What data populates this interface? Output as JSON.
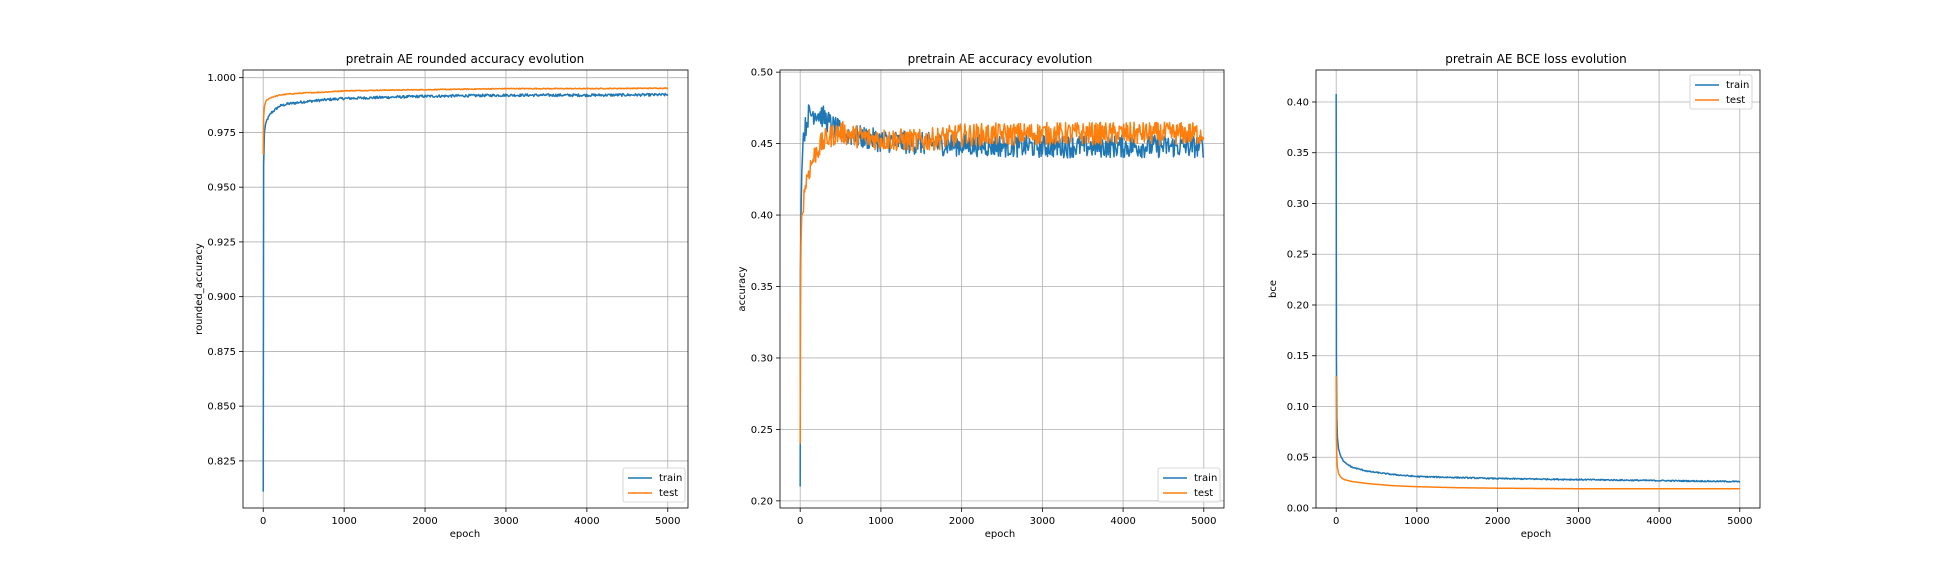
{
  "chart_data": [
    {
      "type": "line",
      "title": "pretrain AE rounded accuracy evolution",
      "xlabel": "epoch",
      "ylabel": "rounded_accuracy",
      "xlim": [
        -250,
        5250
      ],
      "ylim": [
        0.8035,
        1.0035
      ],
      "xticks": [
        0,
        1000,
        2000,
        3000,
        4000,
        5000
      ],
      "yticks": [
        0.825,
        0.85,
        0.875,
        0.9,
        0.925,
        0.95,
        0.975,
        1.0
      ],
      "ytick_labels": [
        "0.825",
        "0.850",
        "0.875",
        "0.900",
        "0.925",
        "0.950",
        "0.975",
        "1.000"
      ],
      "grid": true,
      "legend": "lower-right",
      "noise": [
        0.0006,
        0.0002
      ],
      "series": [
        {
          "name": "train",
          "color": "#1f77b4",
          "x": [
            0,
            5,
            15,
            30,
            50,
            100,
            200,
            300,
            500,
            800,
            1000,
            1500,
            2000,
            3000,
            4000,
            5000
          ],
          "y": [
            0.811,
            0.96,
            0.975,
            0.979,
            0.981,
            0.984,
            0.987,
            0.988,
            0.989,
            0.99,
            0.9905,
            0.991,
            0.9915,
            0.992,
            0.992,
            0.9922
          ]
        },
        {
          "name": "test",
          "color": "#ff7f0e",
          "x": [
            0,
            5,
            15,
            30,
            50,
            100,
            200,
            300,
            500,
            800,
            1000,
            1500,
            2000,
            3000,
            4000,
            5000
          ],
          "y": [
            0.965,
            0.982,
            0.987,
            0.989,
            0.99,
            0.991,
            0.992,
            0.9925,
            0.993,
            0.9935,
            0.994,
            0.9943,
            0.9945,
            0.995,
            0.995,
            0.9952
          ]
        }
      ]
    },
    {
      "type": "line",
      "title": "pretrain AE accuracy evolution",
      "xlabel": "epoch",
      "ylabel": "accuracy",
      "xlim": [
        -250,
        5250
      ],
      "ylim": [
        0.195,
        0.5015
      ],
      "xticks": [
        0,
        1000,
        2000,
        3000,
        4000,
        5000
      ],
      "yticks": [
        0.2,
        0.25,
        0.3,
        0.35,
        0.4,
        0.45,
        0.5
      ],
      "ytick_labels": [
        "0.20",
        "0.25",
        "0.30",
        "0.35",
        "0.40",
        "0.45",
        "0.50"
      ],
      "grid": true,
      "legend": "lower-right",
      "noise": [
        0.008,
        0.008
      ],
      "series": [
        {
          "name": "train",
          "color": "#1f77b4",
          "x": [
            0,
            3,
            10,
            20,
            40,
            60,
            100,
            200,
            300,
            400,
            500,
            700,
            1000,
            1500,
            2000,
            3000,
            4000,
            5000
          ],
          "y": [
            0.21,
            0.36,
            0.4,
            0.43,
            0.455,
            0.46,
            0.47,
            0.472,
            0.468,
            0.462,
            0.458,
            0.455,
            0.452,
            0.45,
            0.449,
            0.448,
            0.448,
            0.448
          ]
        },
        {
          "name": "test",
          "color": "#ff7f0e",
          "x": [
            0,
            3,
            10,
            20,
            40,
            60,
            100,
            200,
            300,
            400,
            500,
            700,
            1000,
            1500,
            2000,
            3000,
            4000,
            5000
          ],
          "y": [
            0.24,
            0.33,
            0.38,
            0.4,
            0.41,
            0.42,
            0.43,
            0.445,
            0.452,
            0.456,
            0.458,
            0.455,
            0.453,
            0.452,
            0.456,
            0.457,
            0.457,
            0.457
          ]
        }
      ]
    },
    {
      "type": "line",
      "title": "pretrain AE BCE loss evolution",
      "xlabel": "epoch",
      "ylabel": "bce",
      "xlim": [
        -250,
        5250
      ],
      "ylim": [
        0.0,
        0.4315
      ],
      "xticks": [
        0,
        1000,
        2000,
        3000,
        4000,
        5000
      ],
      "yticks": [
        0.0,
        0.05,
        0.1,
        0.15,
        0.2,
        0.25,
        0.3,
        0.35,
        0.4
      ],
      "ytick_labels": [
        "0.00",
        "0.05",
        "0.10",
        "0.15",
        "0.20",
        "0.25",
        "0.30",
        "0.35",
        "0.40"
      ],
      "grid": true,
      "legend": "upper-right",
      "noise": [
        0.0006,
        0.0
      ],
      "series": [
        {
          "name": "train",
          "color": "#1f77b4",
          "x": [
            0,
            3,
            8,
            15,
            30,
            60,
            100,
            200,
            400,
            700,
            1000,
            1500,
            2000,
            3000,
            4000,
            5000
          ],
          "y": [
            0.408,
            0.15,
            0.09,
            0.07,
            0.058,
            0.05,
            0.045,
            0.04,
            0.036,
            0.033,
            0.031,
            0.03,
            0.029,
            0.028,
            0.027,
            0.026
          ]
        },
        {
          "name": "test",
          "color": "#ff7f0e",
          "x": [
            0,
            3,
            8,
            15,
            30,
            60,
            100,
            200,
            400,
            700,
            1000,
            1500,
            2000,
            3000,
            4000,
            5000
          ],
          "y": [
            0.13,
            0.07,
            0.05,
            0.04,
            0.034,
            0.03,
            0.028,
            0.026,
            0.024,
            0.022,
            0.021,
            0.02,
            0.0195,
            0.019,
            0.019,
            0.019
          ]
        }
      ]
    }
  ]
}
